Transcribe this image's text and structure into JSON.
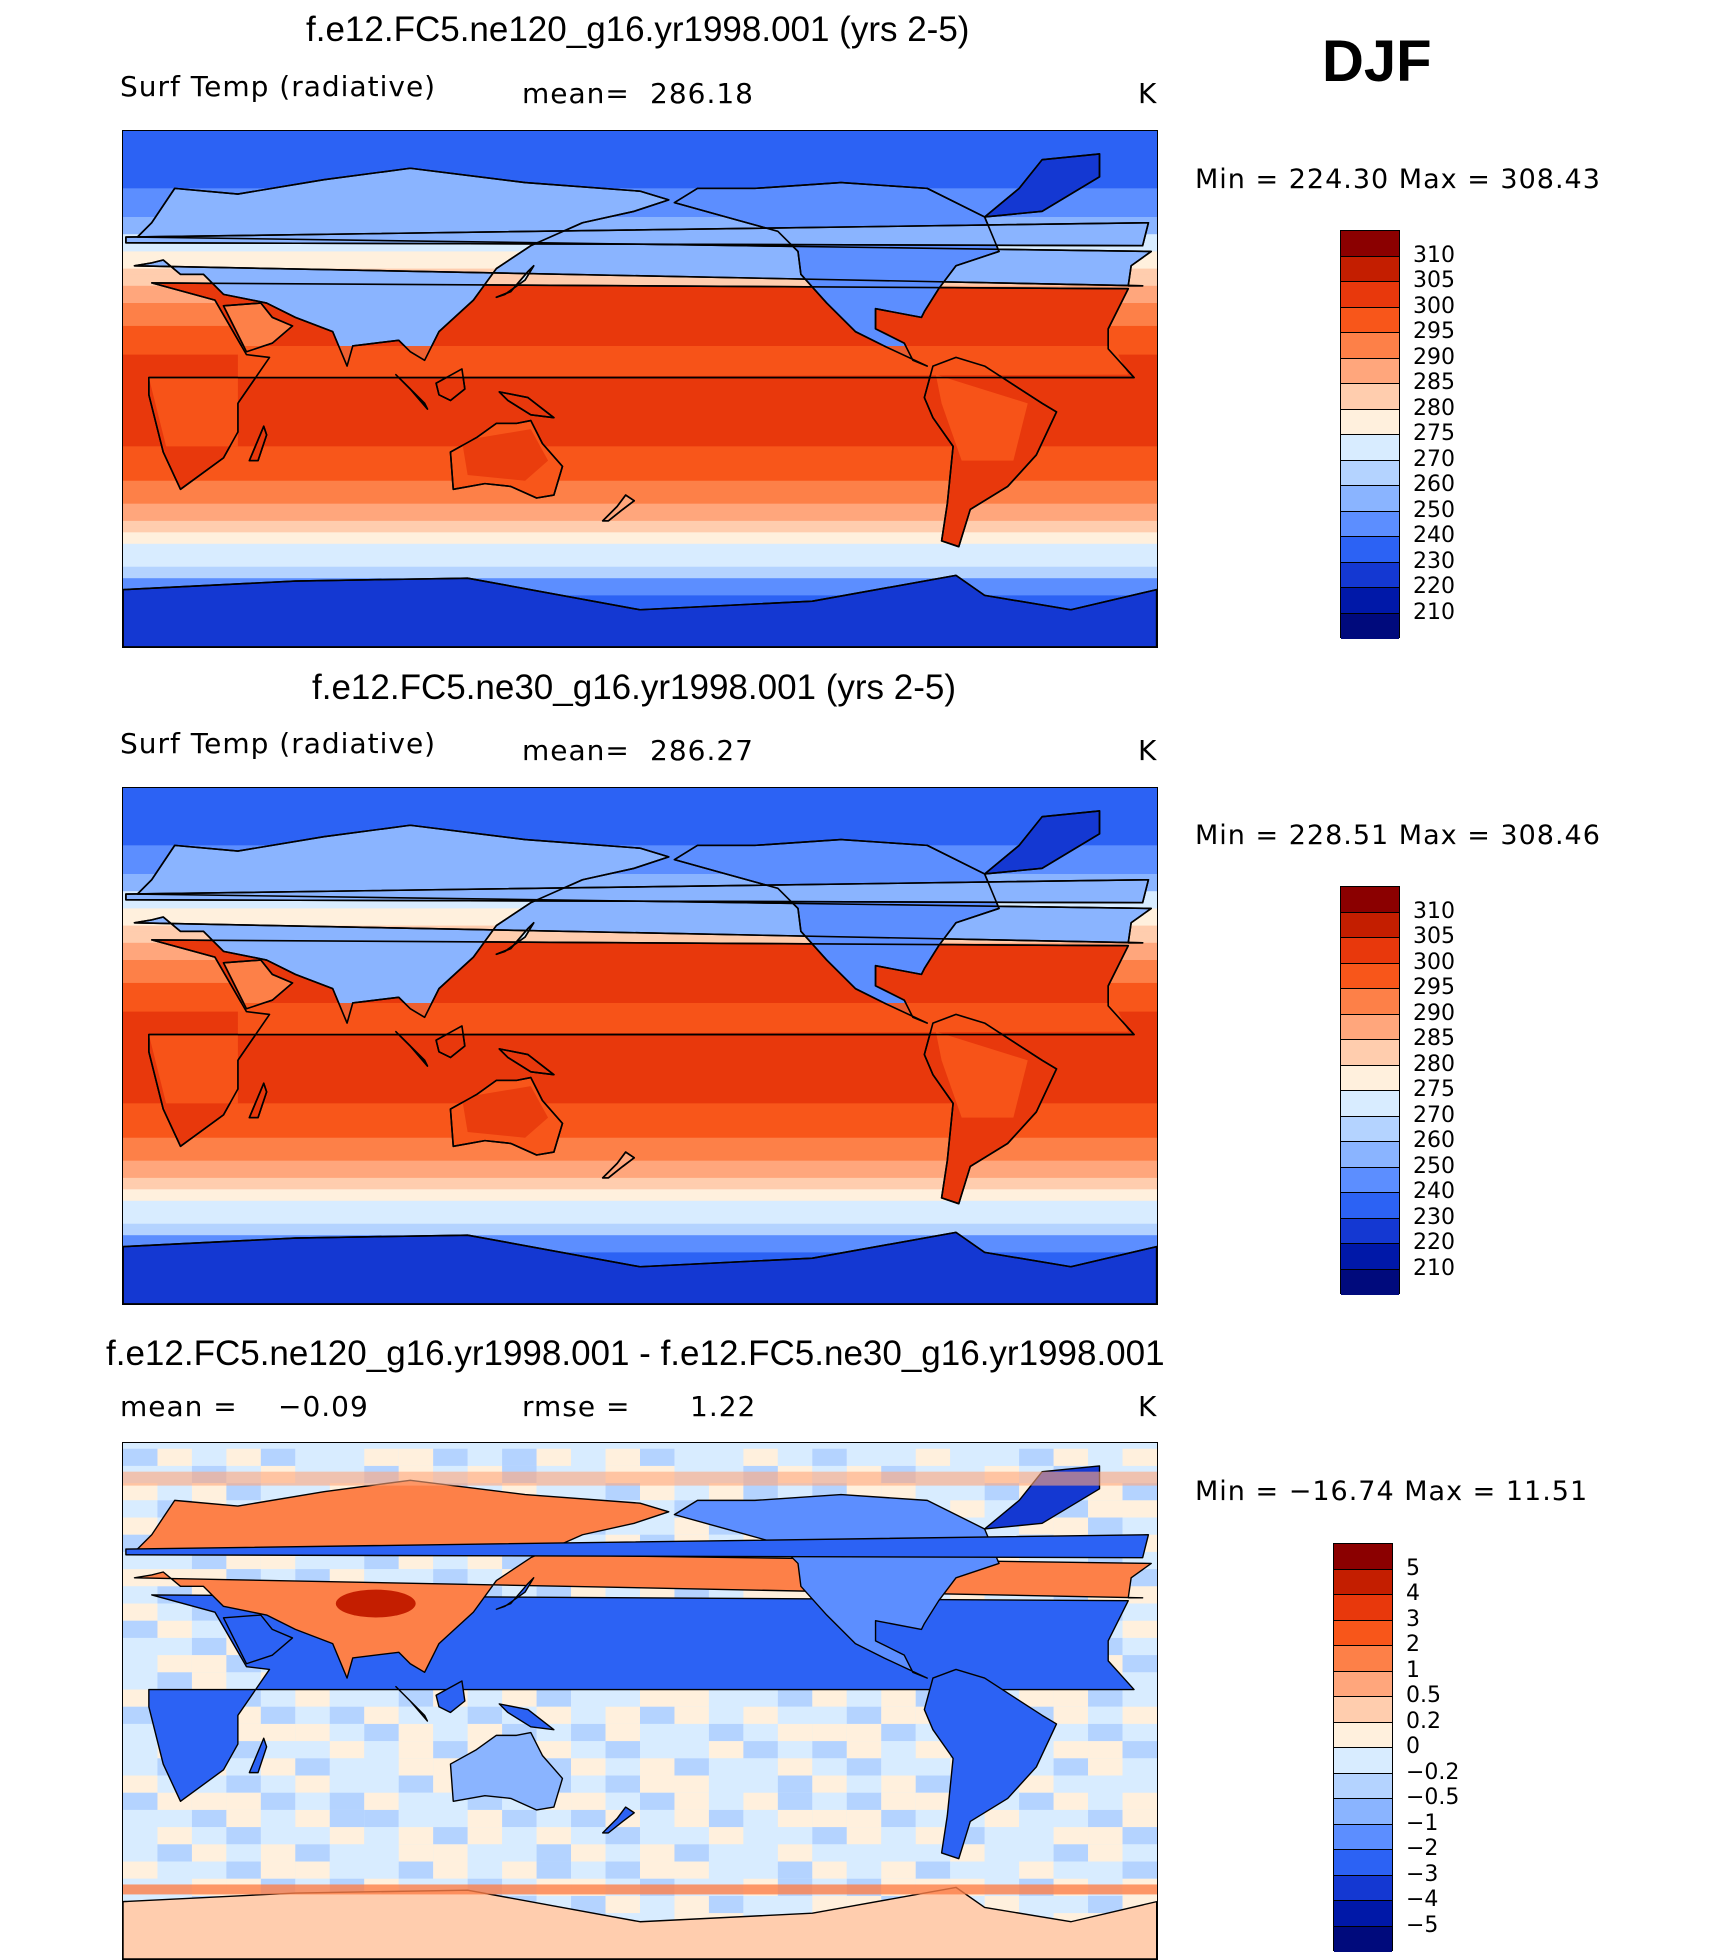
{
  "season": "DJF",
  "chart_data": [
    {
      "type": "heatmap",
      "title": "f.e12.FC5.ne120_g16.yr1998.001 (yrs 2-5)",
      "variable": "Surf Temp (radiative)",
      "stat_label": "mean=",
      "stat_value": "286.18",
      "units": "K",
      "min_label": "Min",
      "min_value": "224.30",
      "max_label": "Max",
      "max_value": "308.43",
      "colorbar_levels": [
        "310",
        "305",
        "300",
        "295",
        "290",
        "285",
        "280",
        "275",
        "270",
        "260",
        "250",
        "240",
        "230",
        "220",
        "210"
      ],
      "colorbar_colors": [
        "#8b0000",
        "#c41e00",
        "#e8380c",
        "#f8561a",
        "#fd8048",
        "#ffa67c",
        "#ffcdae",
        "#fff0dd",
        "#d8ecff",
        "#b4d3ff",
        "#8ab4ff",
        "#5c8eff",
        "#2c62f4",
        "#1438d2",
        "#0018a8",
        "#000a7c"
      ]
    },
    {
      "type": "heatmap",
      "title": "f.e12.FC5.ne30_g16.yr1998.001 (yrs 2-5)",
      "variable": "Surf Temp (radiative)",
      "stat_label": "mean=",
      "stat_value": "286.27",
      "units": "K",
      "min_label": "Min",
      "min_value": "228.51",
      "max_label": "Max",
      "max_value": "308.46",
      "colorbar_levels": [
        "310",
        "305",
        "300",
        "295",
        "290",
        "285",
        "280",
        "275",
        "270",
        "260",
        "250",
        "240",
        "230",
        "220",
        "210"
      ],
      "colorbar_colors": [
        "#8b0000",
        "#c41e00",
        "#e8380c",
        "#f8561a",
        "#fd8048",
        "#ffa67c",
        "#ffcdae",
        "#fff0dd",
        "#d8ecff",
        "#b4d3ff",
        "#8ab4ff",
        "#5c8eff",
        "#2c62f4",
        "#1438d2",
        "#0018a8",
        "#000a7c"
      ]
    },
    {
      "type": "heatmap",
      "title": "f.e12.FC5.ne120_g16.yr1998.001 - f.e12.FC5.ne30_g16.yr1998.001",
      "stat_label": "mean =",
      "stat_value": "−0.09",
      "rmse_label": "rmse =",
      "rmse_value": "1.22",
      "units": "K",
      "min_label": "Min",
      "min_value": "−16.74",
      "max_label": "Max",
      "max_value": "11.51",
      "colorbar_levels": [
        "5",
        "4",
        "3",
        "2",
        "1",
        "0.5",
        "0.2",
        "0",
        "−0.2",
        "−0.5",
        "−1",
        "−2",
        "−3",
        "−4",
        "−5"
      ],
      "colorbar_colors": [
        "#8b0000",
        "#c41e00",
        "#e8380c",
        "#f8561a",
        "#fd8048",
        "#ffa67c",
        "#ffcdae",
        "#fff0dd",
        "#d8ecff",
        "#b4d3ff",
        "#8ab4ff",
        "#5c8eff",
        "#2c62f4",
        "#1438d2",
        "#0018a8",
        "#000a7c"
      ]
    }
  ]
}
